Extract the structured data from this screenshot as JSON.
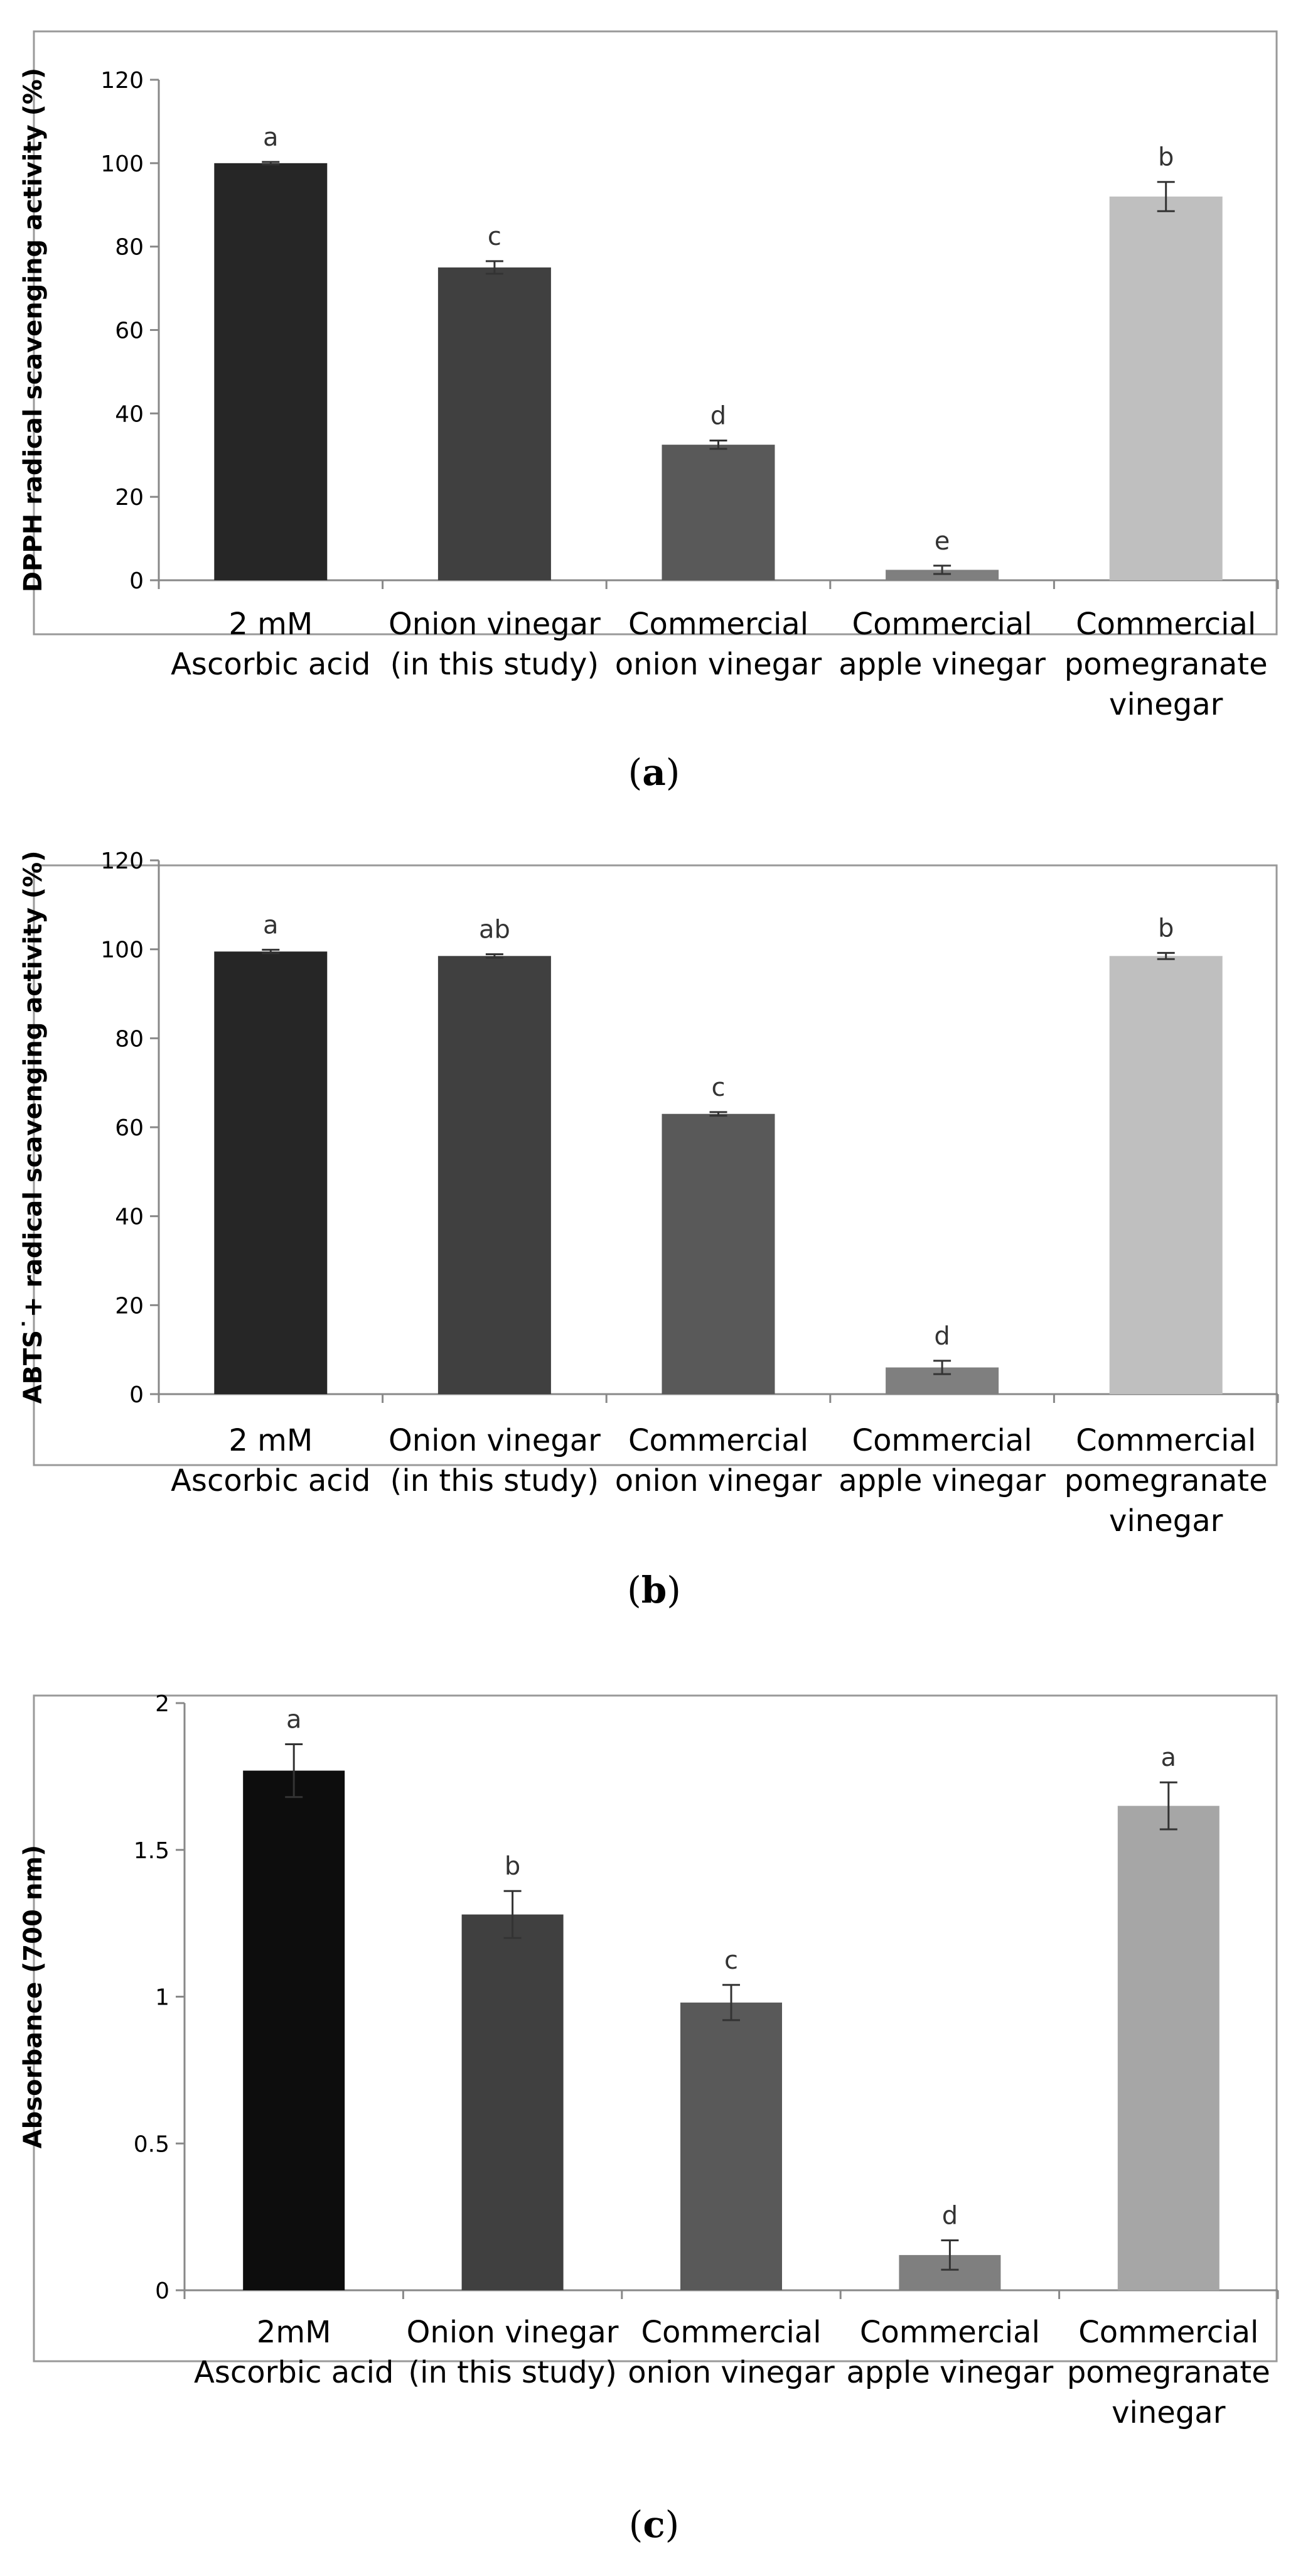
{
  "figure": {
    "panels": [
      "a",
      "b",
      "c"
    ]
  },
  "colors": {
    "bar_a": [
      "#262626",
      "#404040",
      "#595959",
      "#7f7f7f",
      "#bfbfbf"
    ],
    "bar_b": [
      "#262626",
      "#404040",
      "#595959",
      "#7f7f7f",
      "#bfbfbf"
    ],
    "bar_c": [
      "#0d0d0d",
      "#404040",
      "#595959",
      "#7f7f7f",
      "#a6a6a6"
    ]
  },
  "chart_data": [
    {
      "type": "bar",
      "panel_label": "a",
      "ylabel": "DPPH radical scavenging activity (%)",
      "ylim": [
        0,
        120
      ],
      "yticks": [
        "0",
        "20",
        "40",
        "60",
        "80",
        "100",
        "120"
      ],
      "categories": [
        [
          "2 mM",
          "Ascorbic acid"
        ],
        [
          "Onion vinegar",
          "(in this study)"
        ],
        [
          "Commercial",
          "onion vinegar"
        ],
        [
          "Commercial",
          "apple vinegar"
        ],
        [
          "Commercial",
          "pomegranate",
          "vinegar"
        ]
      ],
      "values": [
        100,
        75,
        32.5,
        2.5,
        92
      ],
      "errors": [
        0.3,
        1.5,
        1,
        1,
        3.5
      ],
      "significance": [
        "a",
        "c",
        "d",
        "e",
        "b"
      ]
    },
    {
      "type": "bar",
      "panel_label": "b",
      "ylabel": "ABTS˙+ radical scavenging activity (%)",
      "ylim": [
        0,
        120
      ],
      "yticks": [
        "0",
        "20",
        "40",
        "60",
        "80",
        "100",
        "120"
      ],
      "categories": [
        [
          "2 mM",
          "Ascorbic acid"
        ],
        [
          "Onion vinegar",
          "(in this study)"
        ],
        [
          "Commercial",
          "onion vinegar"
        ],
        [
          "Commercial",
          "apple vinegar"
        ],
        [
          "Commercial",
          "pomegranate",
          "vinegar"
        ]
      ],
      "values": [
        99.5,
        98.5,
        63,
        6,
        98.5
      ],
      "errors": [
        0.4,
        0.4,
        0.4,
        1.5,
        0.7
      ],
      "significance": [
        "a",
        "ab",
        "c",
        "d",
        "b"
      ]
    },
    {
      "type": "bar",
      "panel_label": "c",
      "ylabel": "Absorbance (700 nm)",
      "ylim": [
        0,
        2
      ],
      "yticks": [
        "0",
        "0.5",
        "1",
        "1.5",
        "2"
      ],
      "categories": [
        [
          "2mM",
          "Ascorbic acid"
        ],
        [
          "Onion vinegar",
          "(in this study)"
        ],
        [
          "Commercial",
          "onion vinegar"
        ],
        [
          "Commercial",
          "apple vinegar"
        ],
        [
          "Commercial",
          "pomegranate",
          "vinegar"
        ]
      ],
      "values": [
        1.77,
        1.28,
        0.98,
        0.12,
        1.65
      ],
      "errors": [
        0.09,
        0.08,
        0.06,
        0.05,
        0.08
      ],
      "significance": [
        "a",
        "b",
        "c",
        "d",
        "a"
      ]
    }
  ]
}
